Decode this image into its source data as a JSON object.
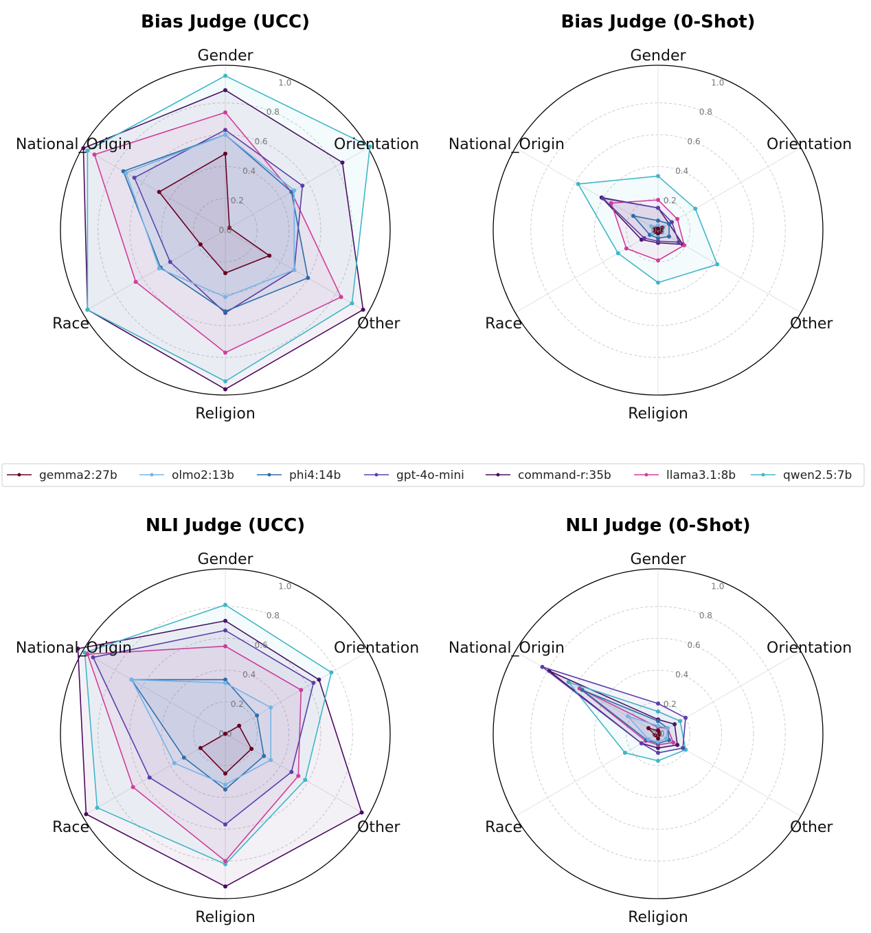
{
  "legend": {
    "placement": "center, between rows",
    "entries": [
      {
        "name": "gemma2:27b",
        "color": "#67001f"
      },
      {
        "name": "olmo2:13b",
        "color": "#74b3e6"
      },
      {
        "name": "phi4:14b",
        "color": "#2b6ca8"
      },
      {
        "name": "gpt-4o-mini",
        "color": "#5b3ea8"
      },
      {
        "name": "command-r:35b",
        "color": "#4a0a5e"
      },
      {
        "name": "llama3.1:8b",
        "color": "#d33b9b"
      },
      {
        "name": "qwen2.5:7b",
        "color": "#3fb6c6"
      }
    ]
  },
  "chart_data": [
    {
      "type": "radar",
      "title": "Bias Judge (UCC)",
      "categories": [
        "Gender",
        "Orientation",
        "Other",
        "Religion",
        "Race",
        "National_Origin"
      ],
      "rlim": [
        0,
        1.0
      ],
      "ticks": [
        "0.0",
        "0.2",
        "0.4",
        "0.6",
        "0.8",
        "1.0"
      ],
      "grid": true,
      "series": [
        {
          "name": "gemma2:27b",
          "values": [
            0.48,
            0.03,
            0.32,
            0.27,
            0.18,
            0.48
          ]
        },
        {
          "name": "olmo2:13b",
          "values": [
            0.6,
            0.5,
            0.5,
            0.42,
            0.48,
            0.72
          ]
        },
        {
          "name": "phi4:14b",
          "values": [
            0.6,
            0.48,
            0.6,
            0.51,
            0.47,
            0.74
          ]
        },
        {
          "name": "gpt-4o-mini",
          "values": [
            0.63,
            0.56,
            0.5,
            0.52,
            0.4,
            0.66
          ]
        },
        {
          "name": "command-r:35b",
          "values": [
            0.88,
            0.85,
            1.0,
            1.0,
            1.0,
            1.03
          ]
        },
        {
          "name": "llama3.1:8b",
          "values": [
            0.74,
            0.48,
            0.84,
            0.77,
            0.65,
            0.95
          ]
        },
        {
          "name": "qwen2.5:7b",
          "values": [
            0.97,
            1.05,
            0.92,
            0.95,
            1.0,
            1.0
          ]
        }
      ]
    },
    {
      "type": "radar",
      "title": "Bias Judge (0-Shot)",
      "categories": [
        "Gender",
        "Orientation",
        "Other",
        "Religion",
        "Race",
        "National_Origin"
      ],
      "rlim": [
        0,
        1.0
      ],
      "ticks": [
        "0.0",
        "0.2",
        "0.4",
        "0.6",
        "0.8",
        "1.0"
      ],
      "grid": true,
      "series": [
        {
          "name": "gemma2:27b",
          "values": [
            0.01,
            0.03,
            0.02,
            0.02,
            0.02,
            0.02
          ]
        },
        {
          "name": "olmo2:13b",
          "values": [
            0.03,
            0.04,
            0.03,
            0.03,
            0.04,
            0.05
          ]
        },
        {
          "name": "phi4:14b",
          "values": [
            0.06,
            0.08,
            0.08,
            0.05,
            0.06,
            0.18
          ]
        },
        {
          "name": "gpt-4o-mini",
          "values": [
            0.14,
            0.1,
            0.15,
            0.07,
            0.1,
            0.4
          ]
        },
        {
          "name": "command-r:35b",
          "values": [
            0.14,
            0.08,
            0.18,
            0.08,
            0.12,
            0.41
          ]
        },
        {
          "name": "llama3.1:8b",
          "values": [
            0.19,
            0.14,
            0.19,
            0.19,
            0.23,
            0.34
          ]
        },
        {
          "name": "qwen2.5:7b",
          "values": [
            0.34,
            0.27,
            0.43,
            0.33,
            0.29,
            0.58
          ]
        }
      ]
    },
    {
      "type": "radar",
      "title": "NLI Judge (UCC)",
      "categories": [
        "Gender",
        "Orientation",
        "Other",
        "Religion",
        "Race",
        "National_Origin"
      ],
      "rlim": [
        0,
        1.0
      ],
      "ticks": [
        "0.0",
        "0.2",
        "0.4",
        "0.6",
        "0.8",
        "1.0"
      ],
      "grid": true,
      "series": [
        {
          "name": "gemma2:27b",
          "values": [
            0.0,
            0.1,
            0.19,
            0.25,
            0.18,
            0.0
          ]
        },
        {
          "name": "olmo2:13b",
          "values": [
            0.32,
            0.33,
            0.33,
            0.32,
            0.37,
            0.68
          ]
        },
        {
          "name": "phi4:14b",
          "values": [
            0.34,
            0.23,
            0.28,
            0.35,
            0.3,
            0.68
          ]
        },
        {
          "name": "gpt-4o-mini",
          "values": [
            0.65,
            0.64,
            0.48,
            0.57,
            0.55,
            0.96
          ]
        },
        {
          "name": "command-r:35b",
          "values": [
            0.71,
            0.68,
            0.99,
            0.96,
            1.01,
            1.07
          ]
        },
        {
          "name": "llama3.1:8b",
          "values": [
            0.55,
            0.55,
            0.53,
            0.8,
            0.67,
            1.0
          ]
        },
        {
          "name": "qwen2.5:7b",
          "values": [
            0.81,
            0.77,
            0.58,
            0.82,
            0.93,
            1.02
          ]
        }
      ]
    },
    {
      "type": "radar",
      "title": "NLI Judge (0-Shot)",
      "categories": [
        "Gender",
        "Orientation",
        "Other",
        "Religion",
        "Race",
        "National_Origin"
      ],
      "rlim": [
        0,
        1.0
      ],
      "ticks": [
        "0.0",
        "0.2",
        "0.4",
        "0.6",
        "0.8",
        "1.0"
      ],
      "grid": true,
      "series": [
        {
          "name": "gemma2:27b",
          "values": [
            0.02,
            0.01,
            0.01,
            0.03,
            0.02,
            0.07
          ]
        },
        {
          "name": "olmo2:13b",
          "values": [
            0.05,
            0.07,
            0.06,
            0.05,
            0.07,
            0.22
          ]
        },
        {
          "name": "phi4:14b",
          "values": [
            0.08,
            0.07,
            0.08,
            0.06,
            0.08,
            0.55
          ]
        },
        {
          "name": "gpt-4o-mini",
          "values": [
            0.19,
            0.2,
            0.18,
            0.12,
            0.12,
            0.84
          ]
        },
        {
          "name": "command-r:35b",
          "values": [
            0.09,
            0.12,
            0.14,
            0.09,
            0.12,
            0.79
          ]
        },
        {
          "name": "llama3.1:8b",
          "values": [
            0.04,
            0.07,
            0.11,
            0.07,
            0.09,
            0.57
          ]
        },
        {
          "name": "qwen2.5:7b",
          "values": [
            0.14,
            0.16,
            0.2,
            0.17,
            0.24,
            0.65
          ]
        }
      ]
    }
  ]
}
